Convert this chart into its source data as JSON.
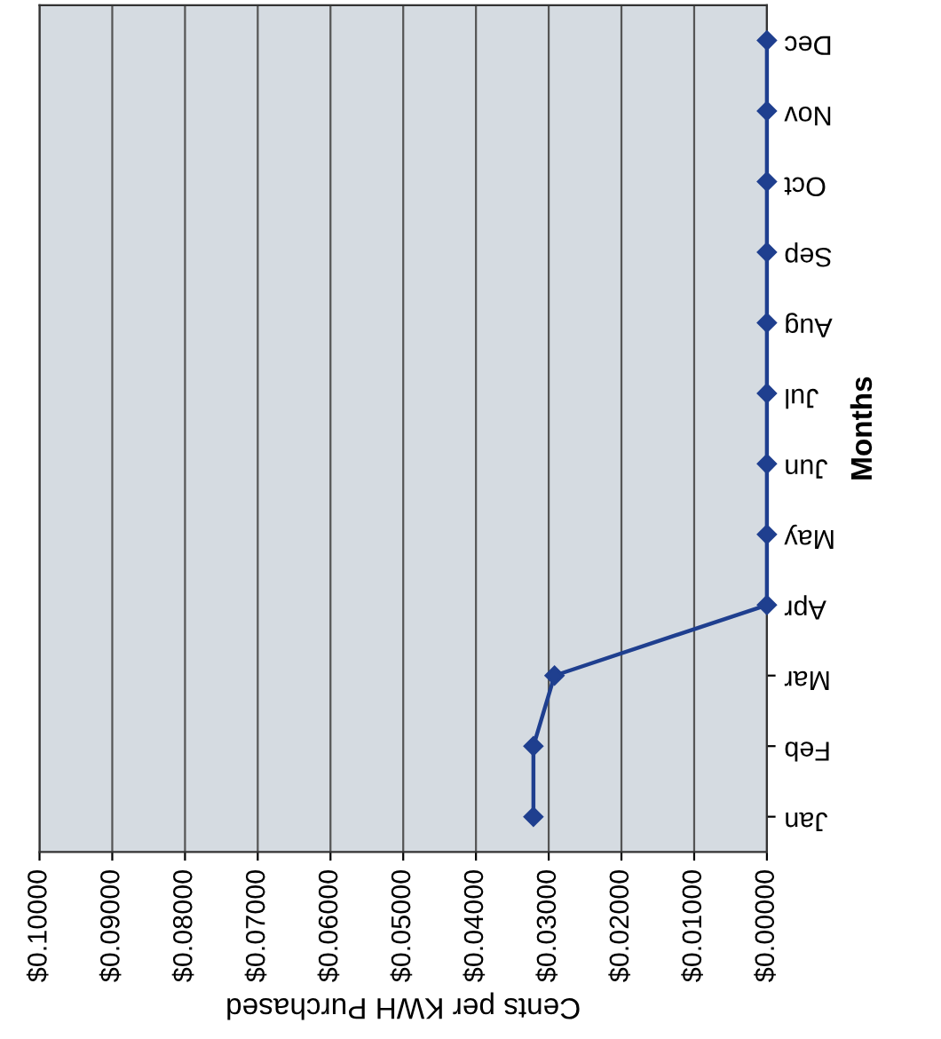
{
  "chart_data": {
    "type": "line",
    "orientation": "horizontal",
    "xlabel": "Cents per KWH Purchased",
    "ylabel": "Months",
    "categories": [
      "Dec",
      "Nov",
      "Oct",
      "Sep",
      "Aug",
      "Jul",
      "Jun",
      "May",
      "Apr",
      "Mar",
      "Feb",
      "Jan"
    ],
    "series": [
      {
        "color": "#1f3f8f",
        "values": [
          0,
          0,
          0,
          0,
          0,
          0,
          0,
          0,
          0,
          0.0292,
          0.0321,
          0.0321
        ]
      }
    ],
    "xlim": [
      0.1,
      0
    ],
    "xticks": [
      {
        "value": 0.1,
        "label": "$0.10000"
      },
      {
        "value": 0.09,
        "label": "$0.09000"
      },
      {
        "value": 0.08,
        "label": "$0.08000"
      },
      {
        "value": 0.07,
        "label": "$0.07000"
      },
      {
        "value": 0.06,
        "label": "$0.06000"
      },
      {
        "value": 0.05,
        "label": "$0.05000"
      },
      {
        "value": 0.04,
        "label": "$0.04000"
      },
      {
        "value": 0.03,
        "label": "$0.03000"
      },
      {
        "value": 0.02,
        "label": "$0.02000"
      },
      {
        "value": 0.01,
        "label": "$0.01000"
      },
      {
        "value": 0,
        "label": "$0.00000"
      }
    ],
    "grid": "x",
    "marker": "diamond",
    "line_style": "solid",
    "legend": false
  }
}
